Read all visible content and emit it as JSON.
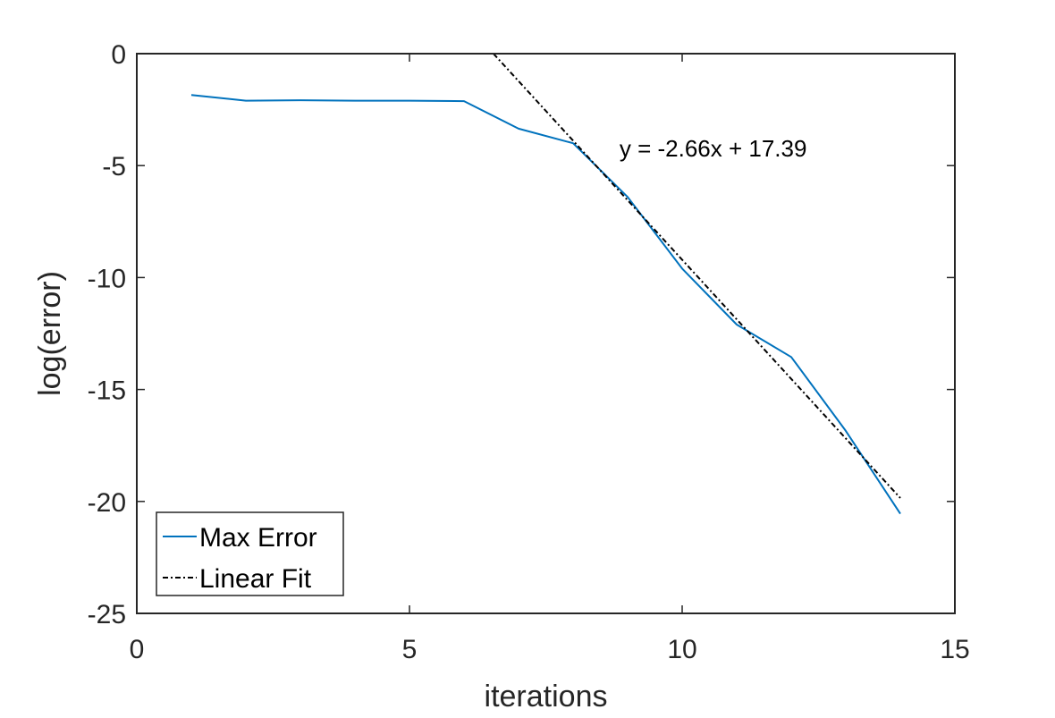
{
  "chart_data": {
    "type": "line",
    "xlabel": "iterations",
    "ylabel": "log(error)",
    "xlim": [
      0,
      15
    ],
    "ylim": [
      -25,
      0
    ],
    "xticks": [
      "0",
      "5",
      "10",
      "15"
    ],
    "yticks": [
      "0",
      "-5",
      "-10",
      "-15",
      "-20",
      "-25"
    ],
    "grid": false,
    "legend_position": "bottom-left",
    "annotation": {
      "text": "y = -2.66x + 17.39",
      "x": 8.85,
      "y": -4.6
    },
    "series": [
      {
        "name": "Max Error",
        "color": "#0072BD",
        "style": "solid",
        "x": [
          1,
          2,
          3,
          4,
          5,
          6,
          7,
          8,
          9,
          10,
          11,
          12,
          13,
          14
        ],
        "y": [
          -1.85,
          -2.1,
          -2.08,
          -2.1,
          -2.1,
          -2.12,
          -3.35,
          -4.0,
          -6.4,
          -9.6,
          -12.1,
          -13.55,
          -16.85,
          -20.55
        ]
      },
      {
        "name": "Linear Fit",
        "color": "#000000",
        "style": "dashdot",
        "slope": -2.66,
        "intercept": 17.39,
        "x": [
          6.54,
          14
        ],
        "y": [
          0,
          -19.85
        ]
      }
    ]
  }
}
